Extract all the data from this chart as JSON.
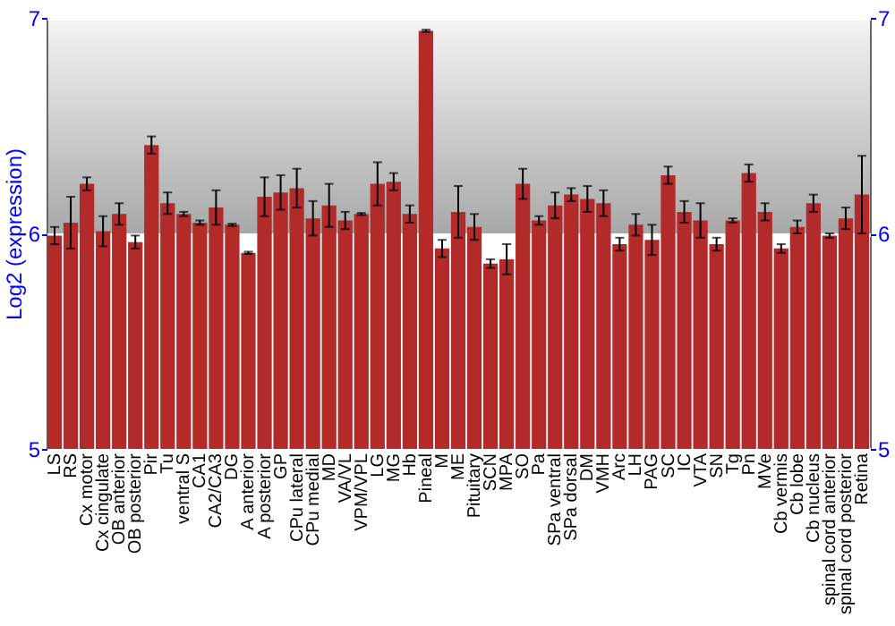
{
  "chart_data": {
    "type": "bar",
    "ylabel": "Log2 (expression)",
    "categories": [
      "LS",
      "RS",
      "Cx motor",
      "Cx cingulate",
      "OB anterior",
      "OB posterior",
      "Pir",
      "Tu",
      "ventral S",
      "CA1",
      "CA2/CA3",
      "DG",
      "A anterior",
      "A posterior",
      "GP",
      "CPu lateral",
      "CPu medial",
      "MD",
      "VA/VL",
      "VPM/VPL",
      "LG",
      "MG",
      "Hb",
      "Pineal",
      "M",
      "ME",
      "Pituitary",
      "SCN",
      "MPA",
      "SO",
      "Pa",
      "SPa ventral",
      "SPa dorsal",
      "DM",
      "VMH",
      "Arc",
      "LH",
      "PAG",
      "SC",
      "IC",
      "VTA",
      "SN",
      "Tg",
      "Pn",
      "MVe",
      "Cb vermis",
      "Cb lobe",
      "Cb nucleus",
      "spinal cord anterior",
      "spinal cord posterior",
      "Retina"
    ],
    "series": [
      {
        "color": "#b22a2a",
        "values": [
          5.99,
          6.05,
          6.23,
          6.01,
          6.09,
          5.96,
          6.41,
          6.14,
          6.09,
          6.05,
          6.12,
          6.04,
          5.91,
          6.17,
          6.19,
          6.21,
          6.07,
          6.13,
          6.06,
          6.09,
          6.23,
          6.24,
          6.09,
          6.94,
          5.93,
          6.1,
          6.03,
          5.86,
          5.88,
          6.23,
          6.06,
          6.13,
          6.18,
          6.16,
          6.14,
          5.95,
          6.04,
          5.97,
          6.27,
          6.1,
          6.06,
          5.95,
          6.06,
          6.28,
          6.1,
          5.93,
          6.03,
          6.14,
          5.99,
          6.07,
          6.18
        ],
        "errors": [
          0.04,
          0.12,
          0.03,
          0.07,
          0.05,
          0.03,
          0.04,
          0.05,
          0.01,
          0.01,
          0.08,
          0.005,
          0.005,
          0.09,
          0.08,
          0.09,
          0.08,
          0.1,
          0.04,
          0.005,
          0.1,
          0.04,
          0.04,
          0.005,
          0.04,
          0.12,
          0.06,
          0.02,
          0.07,
          0.07,
          0.02,
          0.06,
          0.03,
          0.06,
          0.06,
          0.03,
          0.05,
          0.07,
          0.04,
          0.05,
          0.08,
          0.03,
          0.01,
          0.04,
          0.04,
          0.02,
          0.03,
          0.04,
          0.01,
          0.05,
          0.18
        ]
      }
    ],
    "ylim": [
      5,
      7
    ],
    "yticks": [
      5,
      6,
      7
    ],
    "y2lim": [
      5,
      7
    ],
    "y2ticks": [
      5,
      6,
      7
    ],
    "grid": "y"
  }
}
